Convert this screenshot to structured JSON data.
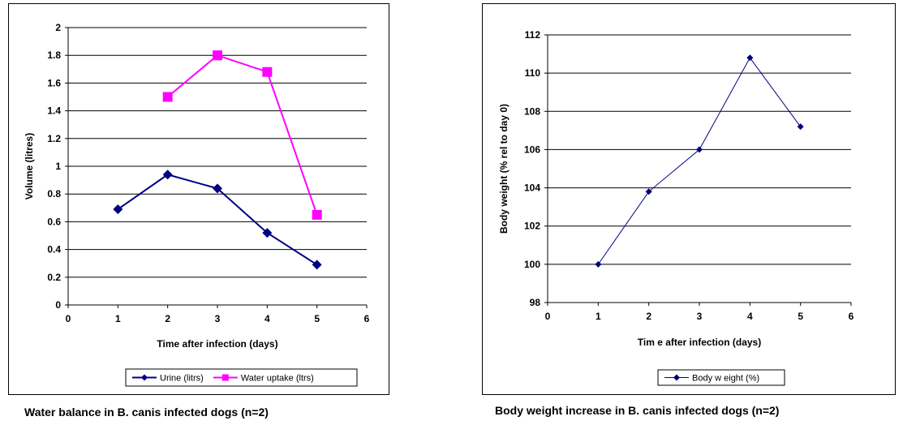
{
  "chart_data": [
    {
      "type": "line",
      "caption": "Water balance in B. canis infected dogs (n=2)",
      "xlabel": "Time after infection (days)",
      "ylabel": "Volume (litres)",
      "xlim": [
        0,
        6
      ],
      "ylim": [
        0,
        2
      ],
      "xticks": [
        0,
        1,
        2,
        3,
        4,
        5,
        6
      ],
      "yticks": [
        0,
        0.2,
        0.4,
        0.6,
        0.8,
        1,
        1.2,
        1.4,
        1.6,
        1.8,
        2
      ],
      "grid": "horizontal",
      "legend_position": "bottom",
      "series": [
        {
          "name": "Urine (litrs)",
          "color": "#000080",
          "marker": "diamond",
          "x": [
            1,
            2,
            3,
            4,
            5
          ],
          "values": [
            0.69,
            0.94,
            0.84,
            0.52,
            0.29
          ]
        },
        {
          "name": "Water uptake (ltrs)",
          "color": "#FF00FF",
          "marker": "square",
          "x": [
            2,
            3,
            4,
            5
          ],
          "values": [
            1.5,
            1.8,
            1.68,
            0.65
          ]
        }
      ]
    },
    {
      "type": "line",
      "caption": "Body weight increase in B. canis infected dogs (n=2)",
      "xlabel": "Tim e after infection (days)",
      "ylabel": "Body weight (% rel to day 0)",
      "xlim": [
        0,
        6
      ],
      "ylim": [
        98,
        112
      ],
      "xticks": [
        0,
        1,
        2,
        3,
        4,
        5,
        6
      ],
      "yticks": [
        98,
        100,
        102,
        104,
        106,
        108,
        110,
        112
      ],
      "grid": "horizontal",
      "legend_position": "bottom",
      "series": [
        {
          "name": "Body w eight (%)",
          "color": "#000080",
          "marker": "diamond",
          "x": [
            1,
            2,
            3,
            4,
            5
          ],
          "values": [
            100,
            103.8,
            106,
            110.8,
            107.2
          ]
        }
      ]
    }
  ]
}
